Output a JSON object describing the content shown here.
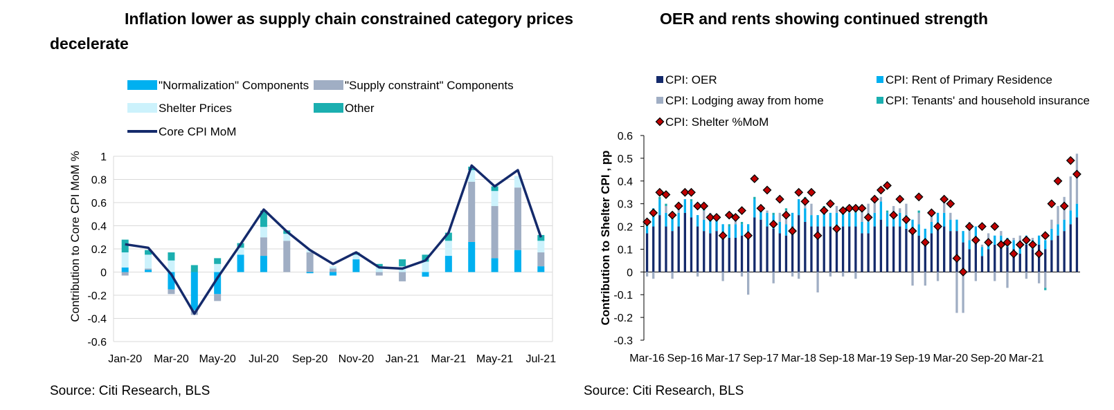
{
  "left": {
    "title_line1": "Inflation lower as supply chain constrained category prices",
    "title_line2": "decelerate",
    "source": "Source: Citi Research, BLS"
  },
  "right": {
    "title": "OER and rents showing continued strength",
    "source": "Source: Citi Research, BLS"
  },
  "chart_data": [
    {
      "type": "bar",
      "stacked": true,
      "ylabel": "Contribution to Core CPI MoM %",
      "ylim": [
        -0.6,
        1.0
      ],
      "yticks": [
        "-0.6",
        "-0.4",
        "-0.2",
        "0",
        "0.2",
        "0.4",
        "0.6",
        "0.8",
        "1"
      ],
      "grid": true,
      "legend_position": "top",
      "categories": [
        "Jan-20",
        "Feb-20",
        "Mar-20",
        "Apr-20",
        "May-20",
        "Jun-20",
        "Jul-20",
        "Aug-20",
        "Sep-20",
        "Oct-20",
        "Nov-20",
        "Dec-20",
        "Jan-21",
        "Feb-21",
        "Mar-21",
        "Apr-21",
        "May-21",
        "Jun-21",
        "Jul-21"
      ],
      "xtick_labels": [
        "Jan-20",
        "Mar-20",
        "May-20",
        "Jul-20",
        "Sep-20",
        "Nov-20",
        "Jan-21",
        "Mar-21",
        "May-21",
        "Jul-21"
      ],
      "series": [
        {
          "name": "\"Normalization\" Components",
          "color": "#00b0f0",
          "values": [
            0.04,
            0.02,
            -0.15,
            -0.33,
            -0.19,
            0.15,
            0.14,
            0.0,
            -0.01,
            -0.03,
            0.11,
            0.0,
            0.0,
            -0.04,
            0.14,
            0.26,
            0.12,
            0.19,
            0.05
          ]
        },
        {
          "name": "\"Supply constraint\" Components",
          "color": "#a0aec4",
          "values": [
            -0.03,
            0.01,
            -0.04,
            -0.04,
            -0.06,
            0.0,
            0.16,
            0.27,
            0.17,
            0.03,
            0.0,
            -0.03,
            -0.08,
            0.0,
            0.0,
            0.52,
            0.45,
            0.54,
            0.12
          ]
        },
        {
          "name": "Shelter Prices",
          "color": "#ccf2fc",
          "values": [
            0.13,
            0.12,
            0.1,
            0.0,
            0.07,
            0.06,
            0.09,
            0.06,
            0.02,
            0.02,
            0.04,
            0.05,
            0.05,
            0.09,
            0.13,
            0.1,
            0.13,
            0.1,
            0.1
          ]
        },
        {
          "name": "Other",
          "color": "#1bafb0",
          "values": [
            0.11,
            0.04,
            0.07,
            0.06,
            0.05,
            0.04,
            0.14,
            0.03,
            0.0,
            0.0,
            0.02,
            0.02,
            0.06,
            0.06,
            0.07,
            0.03,
            0.04,
            0.0,
            0.05
          ]
        }
      ],
      "line": {
        "name": "Core CPI MoM",
        "color": "#142a6b",
        "values": [
          0.24,
          0.21,
          -0.02,
          -0.36,
          -0.05,
          0.24,
          0.54,
          0.35,
          0.19,
          0.07,
          0.17,
          0.04,
          0.03,
          0.1,
          0.34,
          0.92,
          0.74,
          0.88,
          0.3
        ]
      }
    },
    {
      "type": "bar",
      "stacked": true,
      "ylabel": "Contribution to Shelter CPI , pp",
      "ylim": [
        -0.3,
        0.6
      ],
      "yticks": [
        "-0.3",
        "-0.2",
        "-0.1",
        "0",
        "0.1",
        "0.2",
        "0.3",
        "0.4",
        "0.5",
        "0.6"
      ],
      "grid": false,
      "legend_position": "top",
      "start_month": "Mar-16",
      "xtick_labels": [
        "Mar-16",
        "Sep-16",
        "Mar-17",
        "Sep-17",
        "Mar-18",
        "Sep-18",
        "Mar-19",
        "Sep-19",
        "Mar-20",
        "Sep-20",
        "Mar-21"
      ],
      "series": [
        {
          "name": "CPI: OER",
          "color": "#142a6b",
          "values": [
            0.17,
            0.2,
            0.25,
            0.2,
            0.18,
            0.2,
            0.26,
            0.24,
            0.2,
            0.18,
            0.17,
            0.18,
            0.16,
            0.15,
            0.15,
            0.16,
            0.16,
            0.24,
            0.23,
            0.2,
            0.19,
            0.17,
            0.16,
            0.2,
            0.25,
            0.22,
            0.2,
            0.2,
            0.2,
            0.2,
            0.2,
            0.2,
            0.2,
            0.2,
            0.17,
            0.17,
            0.2,
            0.23,
            0.2,
            0.2,
            0.2,
            0.19,
            0.18,
            0.16,
            0.14,
            0.17,
            0.2,
            0.2,
            0.18,
            0.18,
            0.13,
            0.1,
            0.15,
            0.07,
            0.1,
            0.12,
            0.12,
            0.11,
            0.1,
            0.08,
            0.12,
            0.1,
            0.12,
            0.1,
            0.14,
            0.16,
            0.18,
            0.21,
            0.24,
            0.22,
            0.21
          ]
        },
        {
          "name": "CPI: Rent of Primary Residence",
          "color": "#00b0f0",
          "values": [
            0.03,
            0.08,
            0.07,
            0.06,
            0.07,
            0.06,
            0.06,
            0.07,
            0.05,
            0.05,
            0.06,
            0.05,
            0.05,
            0.05,
            0.06,
            0.05,
            0.05,
            0.08,
            0.06,
            0.06,
            0.06,
            0.05,
            0.05,
            0.06,
            0.07,
            0.06,
            0.05,
            0.05,
            0.06,
            0.06,
            0.06,
            0.06,
            0.06,
            0.06,
            0.05,
            0.05,
            0.06,
            0.08,
            0.06,
            0.06,
            0.06,
            0.06,
            0.05,
            0.05,
            0.05,
            0.05,
            0.06,
            0.06,
            0.05,
            0.05,
            0.05,
            0.04,
            0.05,
            0.04,
            0.04,
            0.04,
            0.04,
            0.04,
            0.04,
            0.03,
            0.04,
            0.04,
            0.04,
            0.04,
            0.05,
            0.05,
            0.05,
            0.06,
            0.06,
            0.06,
            0.06
          ]
        },
        {
          "name": "CPI: Lodging away from home",
          "color": "#a0aec4",
          "values": [
            -0.02,
            -0.03,
            0.0,
            0.03,
            -0.03,
            0.02,
            0.0,
            0.0,
            -0.02,
            0.04,
            0.03,
            0.0,
            -0.04,
            0.0,
            0.04,
            -0.02,
            -0.1,
            0.0,
            0.0,
            0.01,
            -0.05,
            0.04,
            0.06,
            -0.02,
            -0.03,
            0.04,
            0.05,
            -0.09,
            0.02,
            -0.02,
            0.03,
            -0.02,
            0.02,
            -0.03,
            0.06,
            0.08,
            0.05,
            0.02,
            0.0,
            0.03,
            0.02,
            0.05,
            -0.06,
            0.05,
            -0.06,
            0.05,
            -0.04,
            0.05,
            0.03,
            -0.18,
            -0.18,
            0.08,
            -0.04,
            0.01,
            0.03,
            -0.04,
            0.02,
            -0.07,
            0.01,
            0.05,
            -0.03,
            0.01,
            -0.05,
            -0.07,
            0.04,
            0.08,
            0.1,
            0.15,
            0.22,
            0.15,
            0.14
          ]
        },
        {
          "name": "CPI: Tenants' and household insurance",
          "color": "#1bafb0",
          "values": [
            0.01,
            0.0,
            0.01,
            0.01,
            0.0,
            0.01,
            0.0,
            0.01,
            0.0,
            0.01,
            0.0,
            0.01,
            0.0,
            0.01,
            0.0,
            0.01,
            0.0,
            0.01,
            0.0,
            0.0,
            0.01,
            0.0,
            0.01,
            0.0,
            0.0,
            0.01,
            0.0,
            0.0,
            0.01,
            0.0,
            0.0,
            0.0,
            0.0,
            0.01,
            0.0,
            0.0,
            0.0,
            0.0,
            0.01,
            0.0,
            0.0,
            0.0,
            0.0,
            0.01,
            0.0,
            0.0,
            0.0,
            0.0,
            0.0,
            0.0,
            0.0,
            0.0,
            0.0,
            0.0,
            0.0,
            0.0,
            0.0,
            0.0,
            0.0,
            0.0,
            0.0,
            0.0,
            0.0,
            -0.01,
            0.0,
            0.0,
            0.0,
            0.0,
            0.0,
            0.0,
            0.0
          ]
        }
      ],
      "points": {
        "name": "CPI: Shelter %MoM",
        "color": "#c00000",
        "values": [
          0.22,
          0.26,
          0.35,
          0.34,
          0.25,
          0.29,
          0.35,
          0.35,
          0.29,
          0.29,
          0.24,
          0.24,
          0.16,
          0.25,
          0.24,
          0.27,
          0.16,
          0.41,
          0.28,
          0.36,
          0.21,
          0.32,
          0.25,
          0.18,
          0.35,
          0.31,
          0.35,
          0.16,
          0.27,
          0.3,
          0.19,
          0.27,
          0.28,
          0.28,
          0.28,
          0.24,
          0.32,
          0.36,
          0.38,
          0.25,
          0.32,
          0.23,
          0.18,
          0.33,
          0.13,
          0.26,
          0.2,
          0.32,
          0.3,
          0.06,
          0.0,
          0.2,
          0.14,
          0.2,
          0.13,
          0.2,
          0.12,
          0.13,
          0.08,
          0.12,
          0.14,
          0.12,
          0.08,
          0.16,
          0.3,
          0.4,
          0.29,
          0.49,
          0.43
        ]
      }
    }
  ]
}
